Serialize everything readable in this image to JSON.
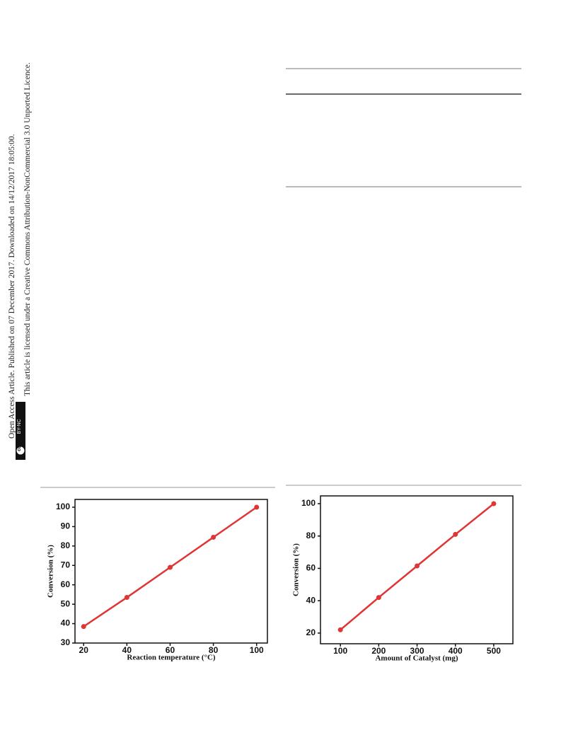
{
  "sidebar": {
    "line1": "Open Access Article. Published on 07 December 2017. Downloaded on 14/12/2017 18:05:00.",
    "line2": "This article is licensed under a Creative Commons Attribution-NonCommercial 3.0 Unported Licence.",
    "badge_icon": "cc",
    "badge": "BY-NC"
  },
  "chart_data": [
    {
      "type": "line",
      "x_label": "Reaction temperature (°C)",
      "y_label": "Conversion (%)",
      "x": [
        20,
        40,
        60,
        80,
        100
      ],
      "values": [
        38.5,
        53.5,
        69,
        84.5,
        100
      ],
      "color": "#e03535",
      "xlim": [
        16,
        105
      ],
      "xticks": [
        20,
        40,
        60,
        80,
        100
      ],
      "ylim": [
        30,
        104
      ],
      "yticks": [
        30,
        40,
        50,
        60,
        70,
        80,
        90,
        100
      ]
    },
    {
      "type": "line",
      "x_label": "Amount of Catalyst (mg)",
      "y_label": "Conversion (%)",
      "x": [
        100,
        200,
        300,
        400,
        500
      ],
      "values": [
        22,
        42,
        61.5,
        81,
        100
      ],
      "color": "#e03535",
      "xlim": [
        48,
        550
      ],
      "xticks": [
        100,
        200,
        300,
        400,
        500
      ],
      "ylim": [
        13.4,
        104.8
      ],
      "yticks": [
        20,
        40,
        60,
        80,
        100
      ]
    }
  ]
}
